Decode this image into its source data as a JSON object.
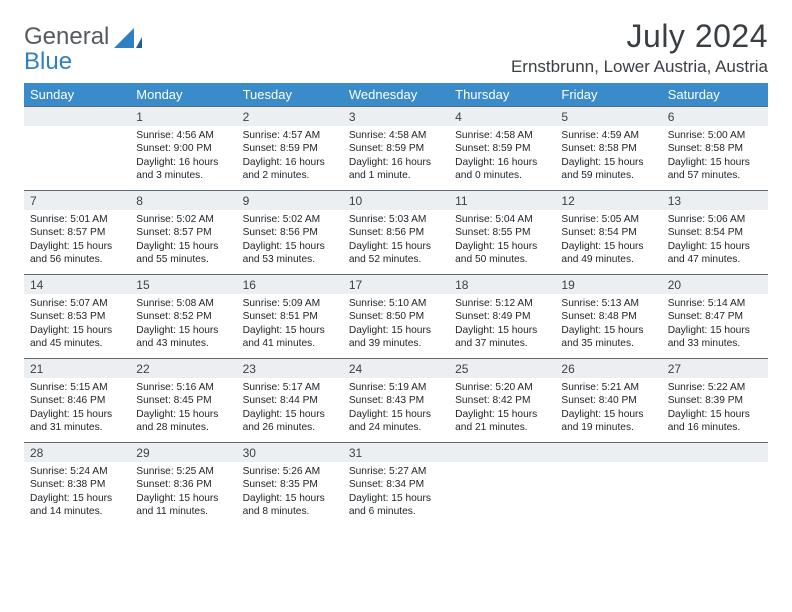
{
  "brand": {
    "line1": "General",
    "line2": "Blue"
  },
  "title": "July 2024",
  "location": "Ernstbrunn, Lower Austria, Austria",
  "colors": {
    "header_bg": "#3a8bc9",
    "daybar_bg": "#eceff1",
    "rule": "#5f6a73",
    "logo_gray": "#555b60",
    "logo_blue": "#2f80c2"
  },
  "fonts": {
    "title_size": 32,
    "location_size": 17,
    "dow_size": 13,
    "daynum_size": 12,
    "body_size": 10.2
  },
  "days_of_week": [
    "Sunday",
    "Monday",
    "Tuesday",
    "Wednesday",
    "Thursday",
    "Friday",
    "Saturday"
  ],
  "weeks": [
    [
      null,
      {
        "n": "1",
        "sr": "4:56 AM",
        "ss": "9:00 PM",
        "dl": "16 hours and 3 minutes."
      },
      {
        "n": "2",
        "sr": "4:57 AM",
        "ss": "8:59 PM",
        "dl": "16 hours and 2 minutes."
      },
      {
        "n": "3",
        "sr": "4:58 AM",
        "ss": "8:59 PM",
        "dl": "16 hours and 1 minute."
      },
      {
        "n": "4",
        "sr": "4:58 AM",
        "ss": "8:59 PM",
        "dl": "16 hours and 0 minutes."
      },
      {
        "n": "5",
        "sr": "4:59 AM",
        "ss": "8:58 PM",
        "dl": "15 hours and 59 minutes."
      },
      {
        "n": "6",
        "sr": "5:00 AM",
        "ss": "8:58 PM",
        "dl": "15 hours and 57 minutes."
      }
    ],
    [
      {
        "n": "7",
        "sr": "5:01 AM",
        "ss": "8:57 PM",
        "dl": "15 hours and 56 minutes."
      },
      {
        "n": "8",
        "sr": "5:02 AM",
        "ss": "8:57 PM",
        "dl": "15 hours and 55 minutes."
      },
      {
        "n": "9",
        "sr": "5:02 AM",
        "ss": "8:56 PM",
        "dl": "15 hours and 53 minutes."
      },
      {
        "n": "10",
        "sr": "5:03 AM",
        "ss": "8:56 PM",
        "dl": "15 hours and 52 minutes."
      },
      {
        "n": "11",
        "sr": "5:04 AM",
        "ss": "8:55 PM",
        "dl": "15 hours and 50 minutes."
      },
      {
        "n": "12",
        "sr": "5:05 AM",
        "ss": "8:54 PM",
        "dl": "15 hours and 49 minutes."
      },
      {
        "n": "13",
        "sr": "5:06 AM",
        "ss": "8:54 PM",
        "dl": "15 hours and 47 minutes."
      }
    ],
    [
      {
        "n": "14",
        "sr": "5:07 AM",
        "ss": "8:53 PM",
        "dl": "15 hours and 45 minutes."
      },
      {
        "n": "15",
        "sr": "5:08 AM",
        "ss": "8:52 PM",
        "dl": "15 hours and 43 minutes."
      },
      {
        "n": "16",
        "sr": "5:09 AM",
        "ss": "8:51 PM",
        "dl": "15 hours and 41 minutes."
      },
      {
        "n": "17",
        "sr": "5:10 AM",
        "ss": "8:50 PM",
        "dl": "15 hours and 39 minutes."
      },
      {
        "n": "18",
        "sr": "5:12 AM",
        "ss": "8:49 PM",
        "dl": "15 hours and 37 minutes."
      },
      {
        "n": "19",
        "sr": "5:13 AM",
        "ss": "8:48 PM",
        "dl": "15 hours and 35 minutes."
      },
      {
        "n": "20",
        "sr": "5:14 AM",
        "ss": "8:47 PM",
        "dl": "15 hours and 33 minutes."
      }
    ],
    [
      {
        "n": "21",
        "sr": "5:15 AM",
        "ss": "8:46 PM",
        "dl": "15 hours and 31 minutes."
      },
      {
        "n": "22",
        "sr": "5:16 AM",
        "ss": "8:45 PM",
        "dl": "15 hours and 28 minutes."
      },
      {
        "n": "23",
        "sr": "5:17 AM",
        "ss": "8:44 PM",
        "dl": "15 hours and 26 minutes."
      },
      {
        "n": "24",
        "sr": "5:19 AM",
        "ss": "8:43 PM",
        "dl": "15 hours and 24 minutes."
      },
      {
        "n": "25",
        "sr": "5:20 AM",
        "ss": "8:42 PM",
        "dl": "15 hours and 21 minutes."
      },
      {
        "n": "26",
        "sr": "5:21 AM",
        "ss": "8:40 PM",
        "dl": "15 hours and 19 minutes."
      },
      {
        "n": "27",
        "sr": "5:22 AM",
        "ss": "8:39 PM",
        "dl": "15 hours and 16 minutes."
      }
    ],
    [
      {
        "n": "28",
        "sr": "5:24 AM",
        "ss": "8:38 PM",
        "dl": "15 hours and 14 minutes."
      },
      {
        "n": "29",
        "sr": "5:25 AM",
        "ss": "8:36 PM",
        "dl": "15 hours and 11 minutes."
      },
      {
        "n": "30",
        "sr": "5:26 AM",
        "ss": "8:35 PM",
        "dl": "15 hours and 8 minutes."
      },
      {
        "n": "31",
        "sr": "5:27 AM",
        "ss": "8:34 PM",
        "dl": "15 hours and 6 minutes."
      },
      null,
      null,
      null
    ]
  ],
  "labels": {
    "sunrise": "Sunrise:",
    "sunset": "Sunset:",
    "daylight": "Daylight:"
  }
}
